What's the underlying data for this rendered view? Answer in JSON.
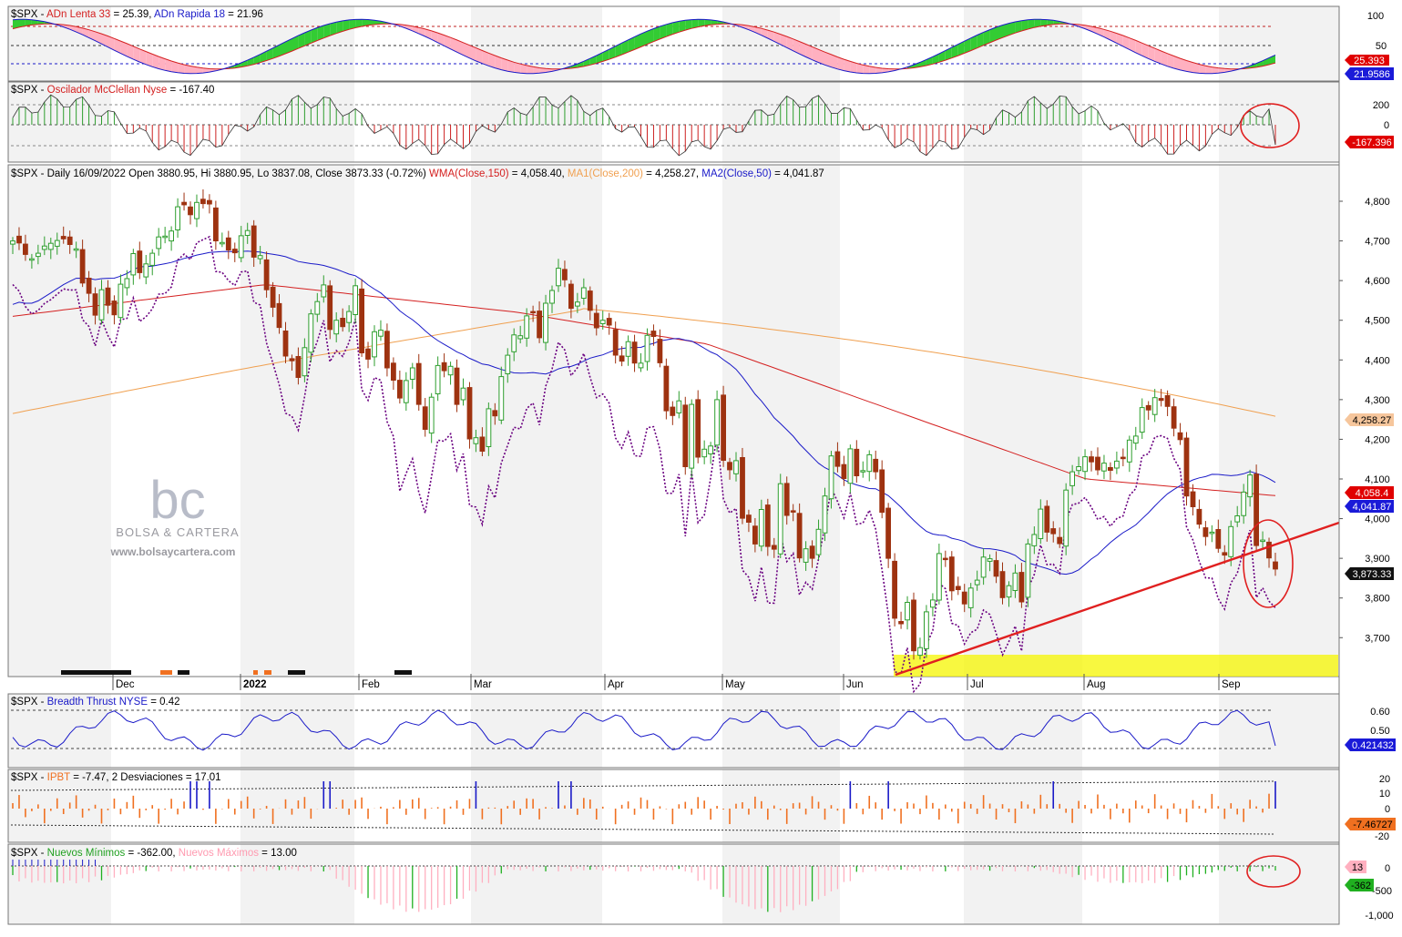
{
  "colors": {
    "up": "#2e9e2e",
    "down": "#9e3210",
    "wma150": "#d42020",
    "ma200": "#f0a050",
    "ma50": "#1a1ac8",
    "breadth_dotted": "#6a0080",
    "trend": "#e02020",
    "adn_green": "#33cc33",
    "adn_pink": "#ffb0c0",
    "mcc_up": "#2e9e2e",
    "mcc_down": "#cc2020",
    "bt_line": "#1a1ac8",
    "ipbt_bar": "#f07020",
    "ipbt_extreme": "#1a1ac8",
    "nm_green": "#20b020",
    "nm_pink": "#ffb0c0",
    "support_zone": "#f5f500",
    "watermark": "#9a9aa0"
  },
  "icons": {
    "watermark_logo": "bc-logo-icon",
    "highlight": "red-circle-annotation"
  },
  "watermark": {
    "logo": "bc",
    "name": "BOLSA & CARTERA",
    "url": "www.bolsaycartera.com"
  },
  "panels": {
    "adn": {
      "p1": "$SPX - ",
      "p2": "ADn Lenta 33",
      "p3": " = 25.39, ",
      "p4": "ADn Rapida 18",
      "p5": " = 21.96",
      "ticks": [
        "100",
        "50"
      ],
      "tag_red": "25.393",
      "tag_blue": "21.9586"
    },
    "mcc": {
      "p1": "$SPX - ",
      "p2": "Oscilador McClellan Nyse",
      "p3": " = -167.40",
      "ticks": [
        "200",
        "0",
        "-200"
      ],
      "tag": "-167.396"
    },
    "price": {
      "p1": "$SPX - Daily 16/09/2022 Open 3880.95, Hi 3880.95, Lo 3837.08, Close 3873.33 (-0.72%) ",
      "p2": "WMA(Close,150)",
      "p3": " = 4,058.40, ",
      "p4": "MA1(Close,200)",
      "p5": " = 4,258.27, ",
      "p6": "MA2(Close,50)",
      "p7": " = 4,041.87",
      "ticks": [
        "4,800",
        "4,700",
        "4,600",
        "4,500",
        "4,400",
        "4,300",
        "4,200",
        "4,100",
        "4,000",
        "3,900",
        "3,800",
        "3,700"
      ],
      "tag_ma200": "4,258.27",
      "tag_wma": "4,058.4",
      "tag_ma50": "4,041.87",
      "tag_close": "3,873.33",
      "months": [
        "Dec",
        "2022",
        "Feb",
        "Mar",
        "Apr",
        "May",
        "Jun",
        "Jul",
        "Aug",
        "Sep"
      ]
    },
    "bt": {
      "p1": "$SPX - ",
      "p2": "Breadth Thrust NYSE",
      "p3": " = 0.42",
      "ticks": [
        "0.60",
        "0.50"
      ],
      "tag": "0.421432"
    },
    "ipbt": {
      "p1": "$SPX - ",
      "p2": "IPBT",
      "p3": " = -7.47,     2 Desviaciones = 17.01",
      "ticks": [
        "20",
        "10",
        "0",
        "-10",
        "-20"
      ],
      "tag": "-7.46727"
    },
    "nm": {
      "p1": "$SPX - ",
      "p2": "Nuevos Mínimos",
      "p3": " = -362.00, ",
      "p4": "Nuevos Máximos",
      "p5": " = 13.00",
      "ticks": [
        "0",
        "-500",
        "-1,000"
      ],
      "tag_pink": "13",
      "tag_green": "-362"
    }
  },
  "chart_data": [
    {
      "id": "price",
      "type": "candlestick",
      "title": "$SPX - Daily 16/09/2022 Open 3880.95, Hi 3880.95, Lo 3837.08, Close 3873.33 (-0.72%)",
      "x_ticks": [
        "Dec",
        "2022",
        "Feb",
        "Mar",
        "Apr",
        "May",
        "Jun",
        "Jul",
        "Aug",
        "Sep"
      ],
      "ylim": [
        3640,
        4840
      ],
      "series": [
        {
          "name": "$SPX close",
          "values": [
            4700,
            4695,
            4666,
            4655,
            4669,
            4687,
            4694,
            4701,
            4705,
            4691,
            4680,
            4594,
            4568,
            4513,
            4577,
            4538,
            4514,
            4591,
            4605,
            4668,
            4620,
            4642,
            4669,
            4710,
            4712,
            4725,
            4786,
            4791,
            4766,
            4797,
            4794,
            4793,
            4700,
            4696,
            4677,
            4670,
            4713,
            4726,
            4659,
            4663,
            4577,
            4533,
            4482,
            4410,
            4398,
            4356,
            4431,
            4516,
            4547,
            4589,
            4477,
            4500,
            4484,
            4522,
            4587,
            4418,
            4402,
            4471,
            4475,
            4380,
            4349,
            4304,
            4348,
            4380,
            4288,
            4225,
            4306,
            4386,
            4373,
            4384,
            4288,
            4329,
            4201,
            4204,
            4170,
            4277,
            4259,
            4358,
            4412,
            4463,
            4461,
            4511,
            4520,
            4456,
            4543,
            4575,
            4631,
            4602,
            4530,
            4546,
            4582,
            4525,
            4481,
            4500,
            4488,
            4412,
            4397,
            4446,
            4392,
            4392,
            4462,
            4459,
            4393,
            4272,
            4260,
            4297,
            4131,
            4288,
            4155,
            4175,
            4183,
            4300,
            4147,
            4123,
            4146,
            4001,
            3991,
            3936,
            4023,
            3930,
            3923,
            4088,
            4008,
            4017,
            3901,
            3924,
            3900,
            3973,
            4057,
            4158,
            4132,
            4101,
            4176,
            4108,
            4121,
            4161,
            4118,
            4016,
            3900,
            3749,
            3735,
            3789,
            3667,
            3675,
            3765,
            3795,
            3912,
            3900,
            3818,
            3821,
            3785,
            3825,
            3845,
            3903,
            3899,
            3855,
            3801,
            3831,
            3863,
            3790,
            3936,
            3960,
            4024,
            3966,
            3962,
            3937,
            4072,
            4118,
            4131,
            4156,
            4143,
            4123,
            4140,
            4122,
            4145,
            4151,
            4198,
            4208,
            4280,
            4274,
            4305,
            4298,
            4283,
            4228,
            4199,
            4057,
            4030,
            3986,
            3955,
            3966,
            3925,
            3908,
            3980,
            4007,
            4067,
            4110,
            3932,
            3946,
            3901,
            3873
          ]
        },
        {
          "name": "WMA(Close,150)",
          "last": 4058.4
        },
        {
          "name": "MA1(Close,200)",
          "last": 4258.27
        },
        {
          "name": "MA2(Close,50)",
          "last": 4041.87
        }
      ]
    },
    {
      "id": "adn",
      "type": "area",
      "title": "ADn Lenta 33 / ADn Rapida 18",
      "series": [
        {
          "name": "ADn Lenta 33",
          "last": 25.39
        },
        {
          "name": "ADn Rapida 18",
          "last": 21.96
        }
      ],
      "ylim": [
        0,
        100
      ]
    },
    {
      "id": "mcc",
      "type": "bar",
      "title": "Oscilador McClellan Nyse",
      "series": [
        {
          "name": "Oscilador McClellan Nyse",
          "last": -167.4
        }
      ],
      "ylim": [
        -200,
        200
      ]
    },
    {
      "id": "bt",
      "type": "line",
      "title": "Breadth Thrust NYSE",
      "series": [
        {
          "name": "Breadth Thrust NYSE",
          "last": 0.42
        }
      ]
    },
    {
      "id": "ipbt",
      "type": "bar",
      "title": "IPBT",
      "series": [
        {
          "name": "IPBT",
          "last": -7.47
        },
        {
          "name": "2 Desviaciones",
          "last": 17.01
        }
      ]
    },
    {
      "id": "nm",
      "type": "bar",
      "title": "Nuevos Mínimos / Nuevos Máximos",
      "series": [
        {
          "name": "Nuevos Mínimos",
          "last": -362.0
        },
        {
          "name": "Nuevos Máximos",
          "last": 13.0
        }
      ]
    }
  ]
}
